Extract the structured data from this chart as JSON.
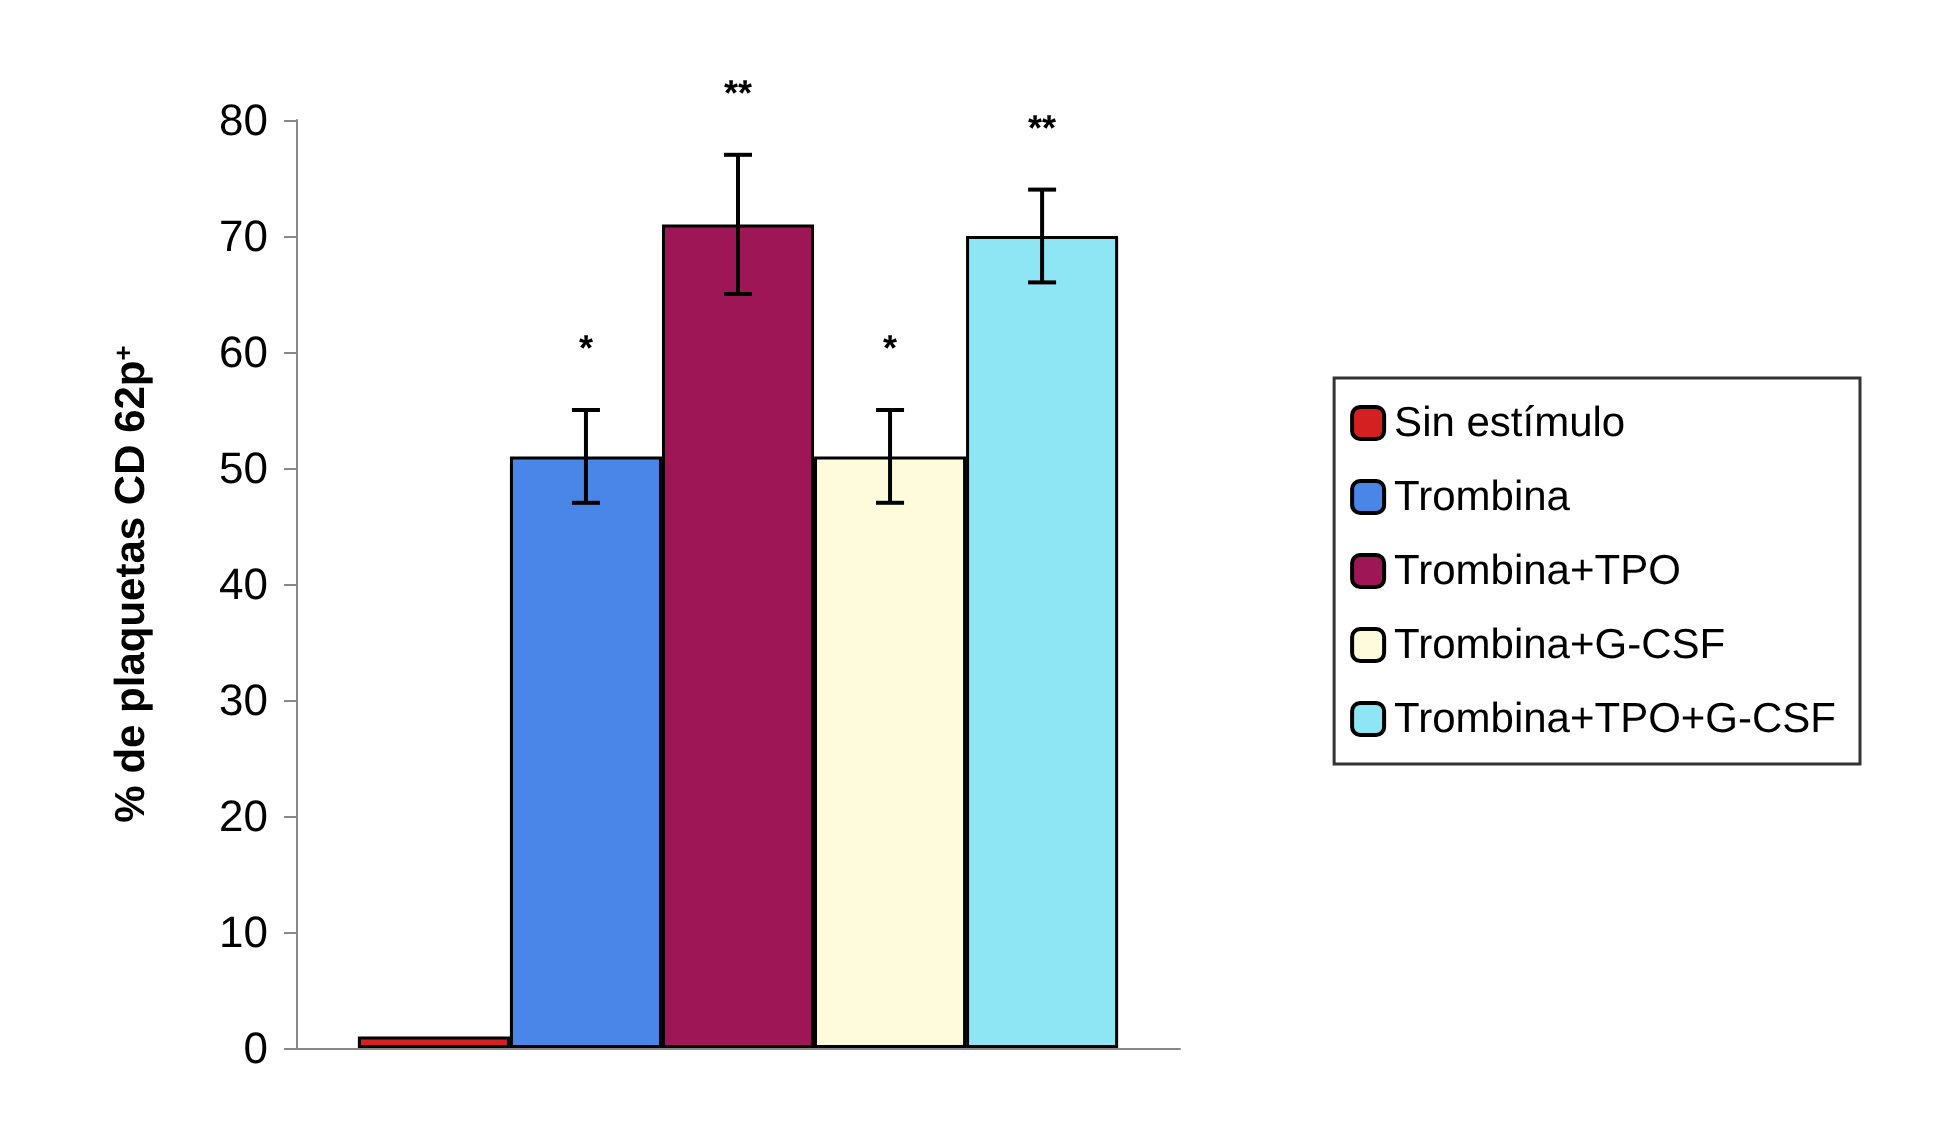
{
  "chart_data": {
    "type": "bar",
    "ylabel": "% de plaquetas CD 62p$^{+}$",
    "categories": [
      null
    ],
    "series": [
      {
        "name": "Sin estímulo",
        "color": "#d42020",
        "values": [
          1
        ],
        "errors": [
          null
        ],
        "value_labels": [
          null
        ]
      },
      {
        "name": "Trombina",
        "color": "#4a86e8",
        "values": [
          51
        ],
        "errors": [
          4
        ],
        "value_labels": [
          "*"
        ]
      },
      {
        "name": "Trombina+TPO",
        "color": "#9e1656",
        "values": [
          71
        ],
        "errors": [
          6
        ],
        "value_labels": [
          "**"
        ]
      },
      {
        "name": "Trombina+G-CSF",
        "color": "#fdfbdc",
        "values": [
          51
        ],
        "errors": [
          4
        ],
        "value_labels": [
          "*"
        ]
      },
      {
        "name": "Trombina+TPO+G-CSF",
        "color": "#8ee6f4",
        "values": [
          70
        ],
        "errors": [
          4
        ],
        "value_labels": [
          "**"
        ]
      }
    ],
    "ylim": [
      0,
      80
    ],
    "yticks": [
      0,
      10,
      20,
      30,
      40,
      50,
      60,
      70,
      80
    ],
    "grid": false,
    "legend": "right"
  }
}
